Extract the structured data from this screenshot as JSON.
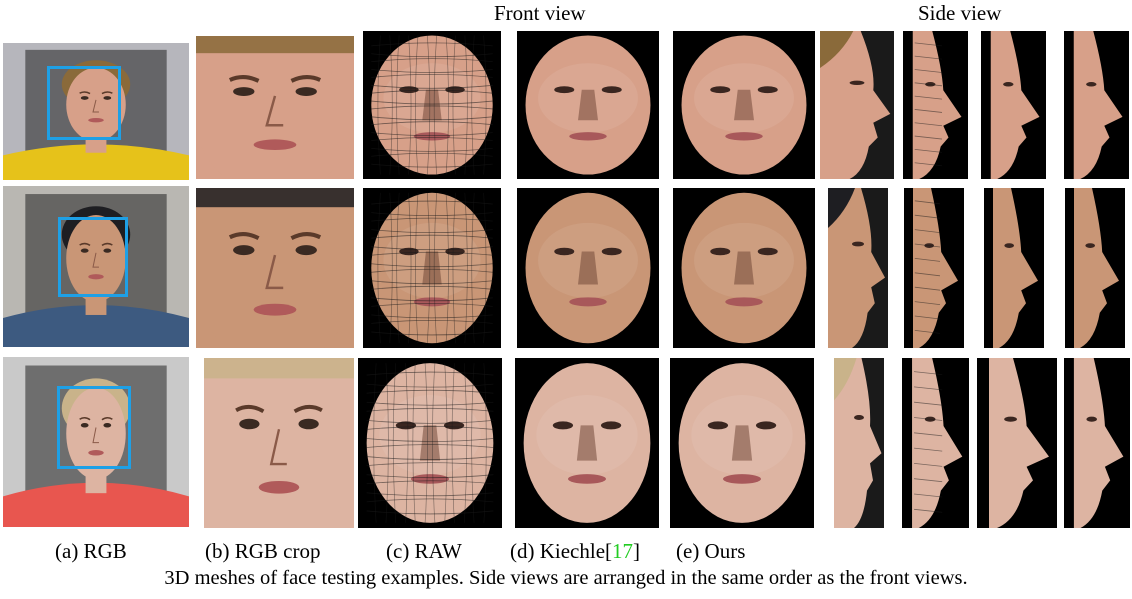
{
  "headers": {
    "front": "Front view",
    "side": "Side view"
  },
  "labels": [
    {
      "id": "a",
      "text": "(a) RGB"
    },
    {
      "id": "b",
      "text": "(b) RGB crop"
    },
    {
      "id": "c",
      "text": "(c) RAW"
    },
    {
      "id": "d",
      "text": "(d) Kiechle[",
      "cite": "17",
      "suffix": "]"
    },
    {
      "id": "e",
      "text": "(e) Ours"
    }
  ],
  "caption": "3D meshes of face testing examples. Side views are arranged in the same order as the front views.",
  "colors": {
    "box": "#1ea0e6",
    "citation": "#22cc22",
    "mesh_bg": "#000000"
  },
  "subjects": [
    {
      "id": "subject-1",
      "skin": "#d7a089",
      "hair": "#8a6a3a",
      "shirt": "#e6c21a",
      "bg": "#b6b6bc"
    },
    {
      "id": "subject-2",
      "skin": "#c99676",
      "hair": "#1e1e22",
      "shirt": "#3d5a80",
      "bg": "#b9b7b2"
    },
    {
      "id": "subject-3",
      "skin": "#ddb4a2",
      "hair": "#c9b38a",
      "shirt": "#e8564f",
      "bg": "#c9c9c9"
    }
  ]
}
